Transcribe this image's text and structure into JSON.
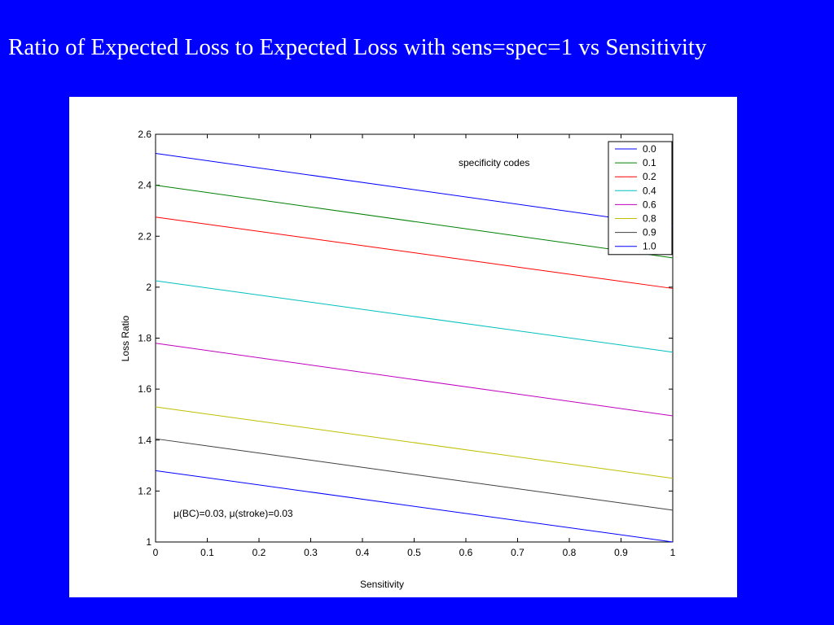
{
  "slide": {
    "title": "Ratio of  Expected Loss to Expected Loss with sens=spec=1 vs Sensitivity"
  },
  "chart_data": {
    "type": "line",
    "title": "",
    "xlabel": "Sensitivity",
    "ylabel": "Loss Ratio",
    "xlim": [
      0,
      1
    ],
    "ylim": [
      1,
      2.6
    ],
    "xticks": [
      "0",
      "0.1",
      "0.2",
      "0.3",
      "0.4",
      "0.5",
      "0.6",
      "0.7",
      "0.8",
      "0.9",
      "1"
    ],
    "yticks": [
      "1",
      "1.2",
      "1.4",
      "1.6",
      "1.8",
      "2",
      "2.2",
      "2.4",
      "2.6"
    ],
    "grid": false,
    "legend_title": "specificity codes",
    "legend_position": "top-right",
    "annotation": "μ(BC)=0.03, μ(stroke)=0.03",
    "x": [
      0,
      1
    ],
    "series": [
      {
        "name": "0.0",
        "color": "#0000ff",
        "values": [
          2.525,
          2.24
        ]
      },
      {
        "name": "0.1",
        "color": "#008000",
        "values": [
          2.4,
          2.115
        ]
      },
      {
        "name": "0.2",
        "color": "#ff0000",
        "values": [
          2.275,
          1.995
        ]
      },
      {
        "name": "0.4",
        "color": "#00bfbf",
        "values": [
          2.025,
          1.745
        ]
      },
      {
        "name": "0.6",
        "color": "#bf00bf",
        "values": [
          1.78,
          1.495
        ]
      },
      {
        "name": "0.8",
        "color": "#bfbf00",
        "values": [
          1.53,
          1.25
        ]
      },
      {
        "name": "0.9",
        "color": "#404040",
        "values": [
          1.405,
          1.125
        ]
      },
      {
        "name": "1.0",
        "color": "#0000ff",
        "values": [
          1.28,
          1.0
        ]
      }
    ]
  }
}
